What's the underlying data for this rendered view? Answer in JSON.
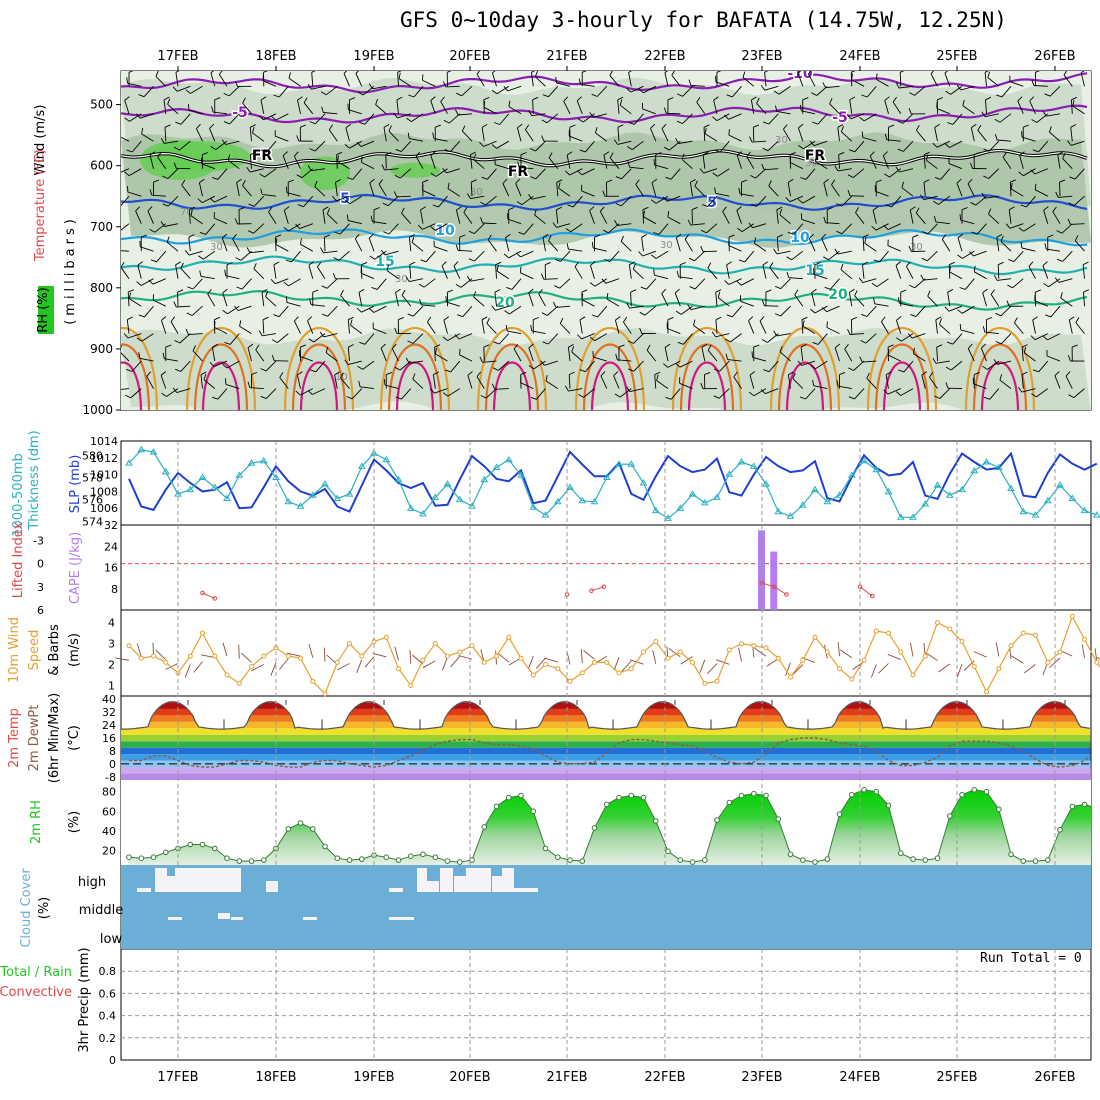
{
  "title": "GFS 0~10day 3-hourly for BAFATA (14.75W, 12.25N)",
  "dates": [
    "17FEB",
    "18FEB",
    "19FEB",
    "20FEB",
    "21FEB",
    "22FEB",
    "23FEB",
    "24FEB",
    "25FEB",
    "26FEB"
  ],
  "run_total": "Run Total = 0",
  "panels": {
    "upper": {
      "ylabel_wind": "Wind (m/s)",
      "ylabel_temp": "Temperature (°C)",
      "ylabel_rh": "RH (%)",
      "ylabel_mb": "(millibars)",
      "yticks": [
        "500",
        "600",
        "700",
        "800",
        "900",
        "1000"
      ],
      "temp_labels": [
        "-10",
        "-5",
        "-5",
        "FR",
        "FR",
        "FR",
        "5",
        "5",
        "10",
        "10",
        "15",
        "15",
        "20",
        "20"
      ],
      "rh_labels": [
        "30",
        "30",
        "30",
        "70",
        "10",
        "30",
        "30",
        "30",
        "30"
      ]
    },
    "slp": {
      "ylabel_thick": "Thickness (dm)",
      "ylabel_thick2": "1000-500mb",
      "ylabel_slp": "SLP (mb)",
      "left_ticks": [
        "580",
        "578",
        "576",
        "574"
      ],
      "right_ticks": [
        "1014",
        "1012",
        "1010",
        "1008",
        "1006"
      ]
    },
    "cape": {
      "ylabel_li": "Lifted Index",
      "ylabel_cape": "CAPE (J/kg)",
      "left_ticks": [
        "-3",
        "0",
        "3",
        "6"
      ],
      "right_ticks": [
        "32",
        "24",
        "16",
        "8"
      ]
    },
    "wind10": {
      "ylabel_1": "10m Wind",
      "ylabel_2": "Speed",
      "ylabel_3": "& Barbs",
      "ylabel_4": "(m/s)",
      "yticks": [
        "4",
        "3",
        "2",
        "1"
      ]
    },
    "temp2m": {
      "ylabel_1": "2m Temp",
      "ylabel_2": "2m DewPt",
      "ylabel_3": "(6hr Min/Max)",
      "ylabel_4": "(°C)",
      "yticks": [
        "40",
        "32",
        "24",
        "16",
        "8",
        "0",
        "-8"
      ]
    },
    "rh2m": {
      "ylabel_1": "2m RH",
      "ylabel_2": "(%)",
      "yticks": [
        "80",
        "60",
        "40",
        "20"
      ]
    },
    "cloud": {
      "ylabel_1": "Cloud Cover",
      "ylabel_2": "(%)",
      "levels": [
        "high",
        "middle",
        "low"
      ]
    },
    "precip": {
      "ylabel_1": "Total / Rain",
      "ylabel_2": "Convective",
      "ylabel_3": "3hr Precip (mm)",
      "yticks": [
        "0.8",
        "0.6",
        "0.4",
        "0.2",
        "0"
      ]
    }
  },
  "colors": {
    "panel_bg": "#ffffff",
    "cloud_bg": "#6baed6",
    "cloud_fill": "#f5f2f8",
    "slp": "#1f3fd0",
    "thickness": "#2ab0c0",
    "cape": "#b27ff0",
    "lifted_index": "#e04848",
    "wind10": "#e8a030",
    "rh_fill": "#22c522",
    "rh_line": "#3a7a3a",
    "dewpt": "#8b5a4a"
  },
  "chart_data": [
    {
      "panel": "surface-pressure",
      "type": "line",
      "title": "",
      "x": "3-hourly steps from 16FEB 12Z to 26FEB 06Z",
      "series": [
        {
          "name": "SLP (mb)",
          "values": [
            1009.5,
            1006.2,
            1005.8,
            1008.2,
            1010.2,
            1009.0,
            1008.0,
            1008.2,
            1009.1,
            1006.0,
            1006.1,
            1008.5,
            1011.0,
            1009.2,
            1008.0,
            1007.5,
            1008.3,
            1006.2,
            1005.6,
            1008.7,
            1011.8,
            1010.5,
            1009.0,
            1008.4,
            1009.0,
            1006.3,
            1006.4,
            1009.4,
            1012.2,
            1011.0,
            1009.5,
            1009.2,
            1010.5,
            1006.6,
            1006.9,
            1009.8,
            1012.7,
            1011.2,
            1009.8,
            1009.8,
            1011.4,
            1007.7,
            1007.0,
            1009.8,
            1012.2,
            1011.0,
            1010.3,
            1010.6,
            1011.9,
            1007.9,
            1007.5,
            1010.0,
            1012.1,
            1011.0,
            1010.3,
            1010.5,
            1011.6,
            1007.2,
            1006.8,
            1009.7,
            1012.3,
            1010.8,
            1009.9,
            1010.1,
            1011.5,
            1007.5,
            1007.1,
            1010.1,
            1012.5,
            1011.5,
            1010.6,
            1010.8,
            1012.5,
            1007.5,
            1007.3,
            1010.2,
            1012.4,
            1011.3,
            1010.6,
            1011.3
          ]
        },
        {
          "name": "Thickness (dm)",
          "values": [
            579.3,
            580.5,
            580.3,
            578.5,
            576.5,
            576.9,
            578.0,
            577.1,
            576.1,
            578.2,
            579.3,
            579.5,
            578.0,
            575.8,
            575.4,
            576.4,
            577.4,
            576.1,
            576.5,
            579.0,
            580.2,
            579.6,
            577.8,
            575.2,
            574.7,
            576.2,
            577.4,
            576.0,
            575.4,
            577.8,
            578.9,
            579.6,
            578.2,
            575.3,
            574.6,
            575.8,
            577.1,
            575.9,
            575.8,
            578.0,
            579.2,
            579.2,
            577.5,
            575.0,
            574.3,
            575.2,
            576.5,
            575.7,
            576.2,
            578.3,
            579.4,
            579.0,
            577.4,
            574.9,
            574.5,
            575.5,
            576.9,
            575.8,
            576.4,
            578.2,
            579.5,
            578.7,
            576.7,
            574.4,
            574.4,
            575.6,
            577.3,
            576.4,
            576.9,
            578.6,
            579.4,
            578.9,
            577.0,
            574.9,
            574.6,
            575.9,
            577.3,
            576.1,
            575.0,
            574.6
          ]
        }
      ]
    },
    {
      "panel": "cape-lifted-index",
      "type": "bar",
      "title": "",
      "series": [
        {
          "name": "CAPE (J/kg)",
          "values": [
            [
              "23FEB 00Z",
              30
            ],
            [
              "23FEB 03Z",
              22
            ]
          ]
        },
        {
          "name": "Lifted Index",
          "values": [
            [
              "17FEB 06Z",
              3.8
            ],
            [
              "17FEB 09Z",
              4.5
            ],
            [
              "21FEB 00Z",
              4.0
            ],
            [
              "21FEB 06Z",
              3.5
            ],
            [
              "21FEB 09Z",
              3.0
            ],
            [
              "23FEB 00Z",
              2.5
            ],
            [
              "23FEB 03Z",
              3.0
            ],
            [
              "23FEB 06Z",
              4.0
            ],
            [
              "24FEB 00Z",
              3.0
            ],
            [
              "24FEB 03Z",
              4.2
            ]
          ]
        }
      ],
      "ylim_cape": [
        0,
        32
      ],
      "ylim_li": [
        -3,
        6
      ],
      "reference_line": "LI = 0"
    },
    {
      "panel": "10m-wind",
      "type": "line",
      "title": "",
      "series": [
        {
          "name": "10m Wind Speed (m/s)",
          "values": [
            2.9,
            2.3,
            2.4,
            2.1,
            1.6,
            2.4,
            3.5,
            2.4,
            1.5,
            1.1,
            1.9,
            2.4,
            2.8,
            2.4,
            2.3,
            1.2,
            0.6,
            2.1,
            3.0,
            2.4,
            3.1,
            3.3,
            1.8,
            1.0,
            2.2,
            3.0,
            2.4,
            2.6,
            2.9,
            2.1,
            2.4,
            3.3,
            2.3,
            1.5,
            2.0,
            1.8,
            1.2,
            1.6,
            2.1,
            2.1,
            1.6,
            1.8,
            2.6,
            3.1,
            2.3,
            2.6,
            2.1,
            1.1,
            1.2,
            2.7,
            3.0,
            2.9,
            2.8,
            2.3,
            1.4,
            2.2,
            3.3,
            2.6,
            1.8,
            1.3,
            2.2,
            3.6,
            3.5,
            2.6,
            1.5,
            2.4,
            4.0,
            3.7,
            3.1,
            1.9,
            0.7,
            1.8,
            2.9,
            3.5,
            3.4,
            2.1,
            2.6,
            4.3,
            3.2,
            2.1,
            1.3,
            2.3,
            3.6,
            3.1,
            2.4,
            1.6,
            1.0,
            2.1
          ]
        }
      ],
      "ylim": [
        0.5,
        4.5
      ]
    },
    {
      "panel": "2m-temperature",
      "type": "area",
      "title": "",
      "series": [
        {
          "name": "2m Temp (°C)",
          "daily_max": 38.5,
          "daily_min": 21.5
        },
        {
          "name": "2m DewPt (°C)",
          "values": [
            2,
            2,
            5,
            5,
            2,
            -1,
            -2,
            -2,
            0,
            2,
            2,
            1,
            -1,
            -2,
            -2,
            1,
            2,
            2,
            0,
            -1,
            -2,
            -1,
            2,
            5,
            8,
            12,
            14,
            15,
            15,
            13,
            12,
            12,
            11,
            9,
            5,
            1,
            0,
            0,
            1,
            7,
            13,
            15,
            15,
            14,
            13,
            12,
            11,
            8,
            4,
            1,
            0,
            1,
            6,
            13,
            15,
            16,
            16,
            15,
            13,
            12,
            11,
            8,
            2,
            -1,
            -1,
            1,
            4,
            11,
            14,
            14,
            14,
            13,
            11,
            8,
            3,
            -1,
            -2,
            -1,
            2,
            8,
            13,
            15,
            15
          ]
        }
      ],
      "ylim": [
        -10,
        42
      ]
    },
    {
      "panel": "2m-rh",
      "type": "area",
      "title": "",
      "series": [
        {
          "name": "2m RH (%)",
          "values": [
            13,
            12,
            13,
            18,
            22,
            26,
            26,
            22,
            12,
            9,
            9,
            10,
            22,
            42,
            48,
            42,
            24,
            12,
            10,
            11,
            15,
            13,
            10,
            14,
            16,
            13,
            9,
            8,
            10,
            44,
            65,
            74,
            76,
            60,
            22,
            13,
            10,
            9,
            43,
            67,
            74,
            76,
            74,
            50,
            19,
            10,
            8,
            10,
            51,
            69,
            76,
            78,
            76,
            52,
            16,
            10,
            8,
            11,
            57,
            77,
            82,
            80,
            66,
            17,
            11,
            10,
            12,
            55,
            77,
            82,
            80,
            62,
            16,
            9,
            9,
            10,
            41,
            65,
            67,
            63,
            38,
            12,
            8,
            9,
            11,
            49,
            71,
            73,
            72
          ]
        }
      ],
      "ylim": [
        5,
        90
      ]
    },
    {
      "panel": "cloud-cover",
      "type": "heatmap",
      "title": "",
      "categories": [
        "high",
        "middle",
        "low"
      ]
    },
    {
      "panel": "precipitation",
      "type": "bar",
      "title": "",
      "series": [
        {
          "name": "Total / Rain",
          "values": []
        },
        {
          "name": "Convective",
          "values": []
        }
      ],
      "ylim": [
        0,
        1
      ]
    }
  ]
}
